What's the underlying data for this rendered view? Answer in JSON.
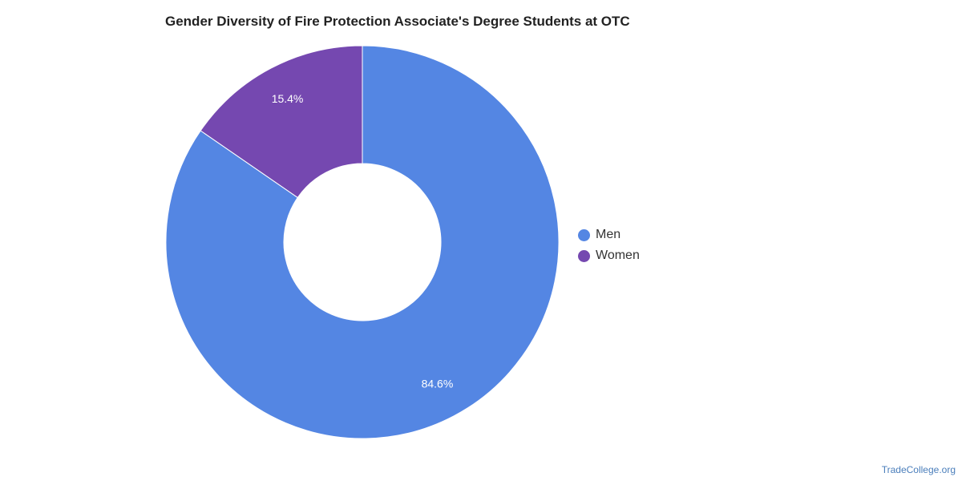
{
  "chart_data": {
    "type": "pie",
    "title": "Gender Diversity of Fire Protection Associate's Degree Students at OTC",
    "legend_position": "right",
    "donut": true,
    "slices": [
      {
        "label": "Men",
        "value": 84.6,
        "value_label": "84.6%",
        "color": "#5486e3"
      },
      {
        "label": "Women",
        "value": 15.4,
        "value_label": "15.4%",
        "color": "#7548b0"
      }
    ]
  },
  "footer": {
    "source": "TradeCollege.org"
  }
}
